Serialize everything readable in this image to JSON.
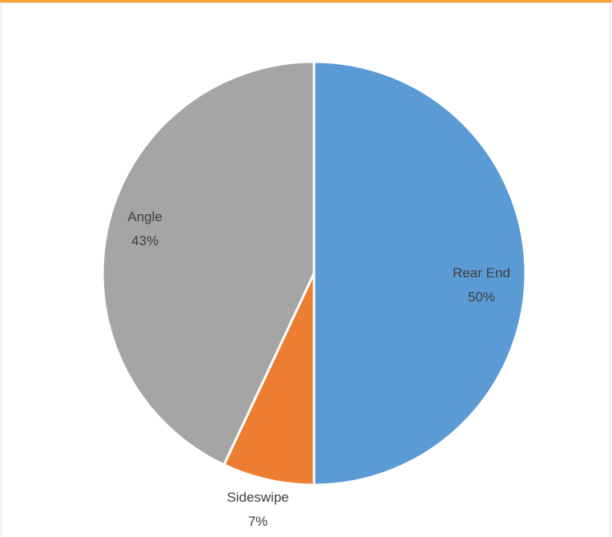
{
  "chart_data": {
    "type": "pie",
    "title": "",
    "slices": [
      {
        "label": "Rear End",
        "value": 50,
        "percent_label": "50%",
        "color": "#5B9BD5"
      },
      {
        "label": "Sideswipe",
        "value": 7,
        "percent_label": "7%",
        "color": "#ED7D31"
      },
      {
        "label": "Angle",
        "value": 43,
        "percent_label": "43%",
        "color": "#A5A5A5"
      }
    ],
    "start_angle_deg": 0,
    "direction": "clockwise",
    "legend": "none",
    "data_labels": "category and percentage"
  },
  "colors": {
    "top_accent": "#F7A235",
    "frame_border": "#D9D9D9",
    "slice_border": "#FFFFFF"
  }
}
